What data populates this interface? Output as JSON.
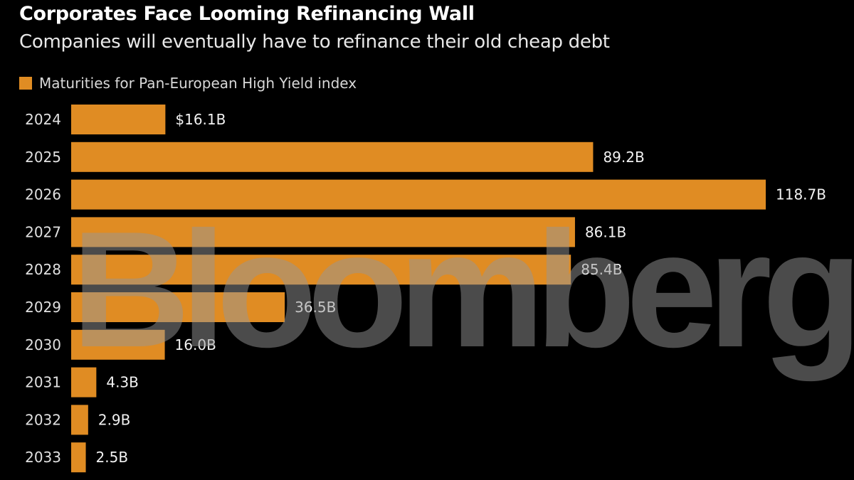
{
  "header": {
    "title": "Corporates Face Looming Refinancing Wall",
    "subtitle": "Companies will eventually have to refinance their old cheap debt"
  },
  "watermark": "Bloomberg",
  "colors": {
    "bar": "#e08c23",
    "background": "#000000",
    "text": "#ffffff"
  },
  "chart_data": {
    "type": "bar",
    "orientation": "horizontal",
    "title": "Corporates Face Looming Refinancing Wall",
    "subtitle": "Companies will eventually have to refinance their old cheap debt",
    "xlabel": "",
    "ylabel": "",
    "unit": "USD billions",
    "legend": {
      "position": "top-left",
      "entries": [
        "Maturities for Pan-European High Yield index"
      ]
    },
    "grid": false,
    "xlim": [
      0,
      118.7
    ],
    "categories": [
      "2024",
      "2025",
      "2026",
      "2027",
      "2028",
      "2029",
      "2030",
      "2031",
      "2032",
      "2033"
    ],
    "series": [
      {
        "name": "Maturities for Pan-European High Yield index",
        "values": [
          16.1,
          89.2,
          118.7,
          86.1,
          85.4,
          36.5,
          16.0,
          4.3,
          2.9,
          2.5
        ]
      }
    ],
    "data_labels": [
      "$16.1B",
      "89.2B",
      "118.7B",
      "86.1B",
      "85.4B",
      "36.5B",
      "16.0B",
      "4.3B",
      "2.9B",
      "2.5B"
    ]
  }
}
